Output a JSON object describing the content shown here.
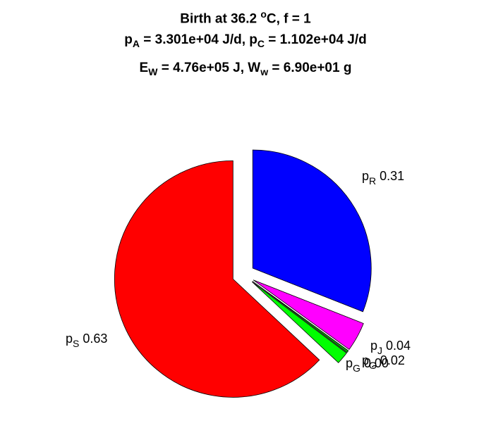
{
  "title": {
    "line1": {
      "pre": "Birth at 36.2 ",
      "sup": "o",
      "post": "C, f = 1"
    },
    "line2": {
      "a": "p",
      "a_sub": "A",
      "a_val": " = 3.301e+04 J/d, ",
      "b": "p",
      "b_sub": "C",
      "b_val": " = 1.102e+04 J/d"
    },
    "line3": {
      "a": "E",
      "a_sub": "W",
      "a_val": " = 4.76e+05 J, ",
      "b": "W",
      "b_sub": "w",
      "b_val": " = 6.90e+01 g"
    }
  },
  "chart_data": {
    "type": "pie",
    "slices": [
      {
        "key": "R",
        "label": "p",
        "sub": "R",
        "value_text": " 0.31",
        "value": 0.31,
        "color": "#0000ff"
      },
      {
        "key": "J",
        "label": "p",
        "sub": "J",
        "value_text": " 0.04",
        "value": 0.04,
        "color": "#ff00ff"
      },
      {
        "key": "G1",
        "label": "p",
        "sub": "G",
        "value_text": " 0.00",
        "value": 0.003,
        "color": "#00aa00"
      },
      {
        "key": "G2",
        "label": "p",
        "sub": "G",
        "value_text": " 0.02",
        "value": 0.017,
        "color": "#00ff00"
      },
      {
        "key": "S",
        "label": "p",
        "sub": "S",
        "value_text": " 0.63",
        "value": 0.63,
        "color": "#ff0000"
      }
    ]
  }
}
